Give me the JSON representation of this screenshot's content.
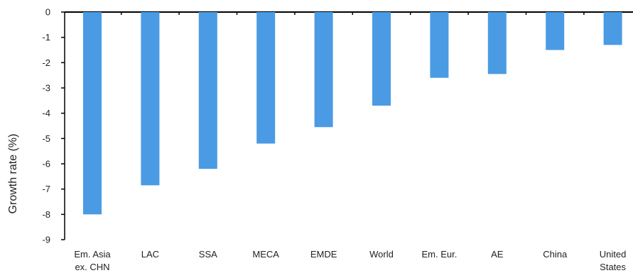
{
  "chart_data": {
    "type": "bar",
    "title": "",
    "xlabel": "",
    "ylabel": "Growth rate (%)",
    "ylim": [
      -9,
      0
    ],
    "yticks": [
      0,
      -1,
      -2,
      -3,
      -4,
      -5,
      -6,
      -7,
      -8,
      -9
    ],
    "categories": [
      [
        "Em. Asia",
        "ex. CHN"
      ],
      [
        "LAC"
      ],
      [
        "SSA"
      ],
      [
        "MECA"
      ],
      [
        "EMDE"
      ],
      [
        "World"
      ],
      [
        "Em. Eur."
      ],
      [
        "AE"
      ],
      [
        "China"
      ],
      [
        "United",
        "States"
      ]
    ],
    "values": [
      -8.0,
      -6.85,
      -6.2,
      -5.2,
      -4.55,
      -3.7,
      -2.6,
      -2.45,
      -1.5,
      -1.3
    ],
    "bar_color": "#4a9be3",
    "axis_color": "#000000",
    "grid": false,
    "legend": "none"
  }
}
